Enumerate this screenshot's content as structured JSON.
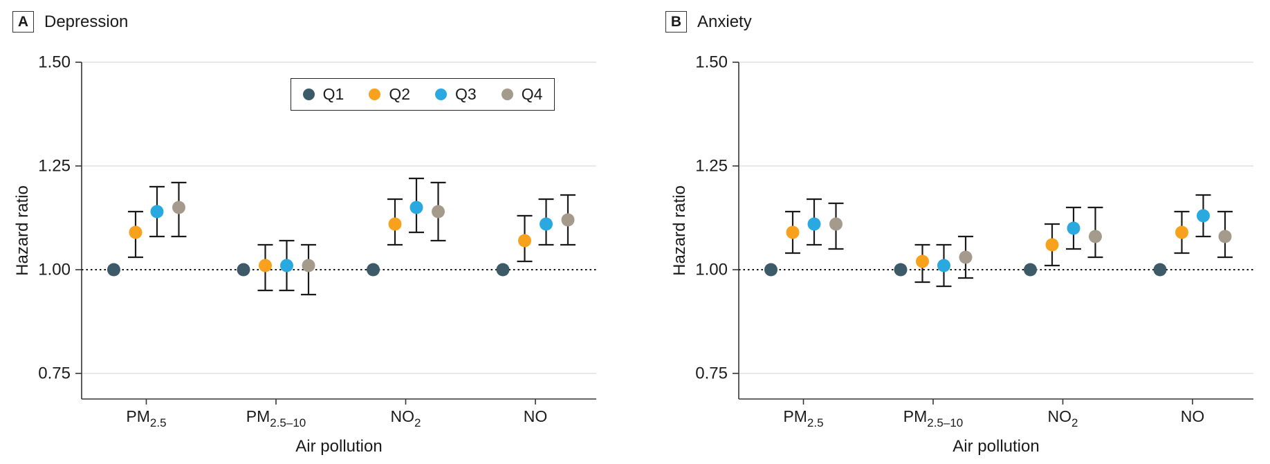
{
  "figure": {
    "panels": [
      {
        "label": "A",
        "title": "Depression"
      },
      {
        "label": "B",
        "title": "Anxiety"
      }
    ]
  },
  "legend": {
    "items": [
      {
        "label": "Q1",
        "color": "#3c5a67"
      },
      {
        "label": "Q2",
        "color": "#f7a11c"
      },
      {
        "label": "Q3",
        "color": "#29a9e0"
      },
      {
        "label": "Q4",
        "color": "#a49b8c"
      }
    ]
  },
  "colors": {
    "grid": "#e8e8e8",
    "axis": "#333333",
    "error_bar": "#1a1a1a",
    "reference_line": "#111111",
    "text": "#1a1a1a"
  },
  "chart_data": [
    {
      "type": "scatter",
      "panel_label": "A",
      "title": "Depression",
      "xlabel": "Air pollution",
      "ylabel": "Hazard ratio",
      "ylim": [
        0.72,
        1.52
      ],
      "y_ticks": [
        1.5,
        1.25,
        1.0,
        0.75
      ],
      "y_tick_labels": [
        "1.50",
        "1.25",
        "1.00",
        "0.75"
      ],
      "reference_line": 1.0,
      "grid": "horizontal",
      "legend_position": "top-center (panel A only)",
      "categories": [
        "PM2.5",
        "PM2.5-10",
        "NO2",
        "NO"
      ],
      "categories_display": [
        {
          "base": "PM",
          "sub": "2.5"
        },
        {
          "base": "PM",
          "sub": "2.5–10"
        },
        {
          "base": "NO",
          "sub": "2"
        },
        {
          "base": "NO",
          "sub": ""
        }
      ],
      "series": [
        {
          "name": "Q1",
          "color": "#3c5a67",
          "values": [
            {
              "hr": 1.0
            },
            {
              "hr": 1.0
            },
            {
              "hr": 1.0
            },
            {
              "hr": 1.0
            }
          ]
        },
        {
          "name": "Q2",
          "color": "#f7a11c",
          "values": [
            {
              "hr": 1.09,
              "lo": 1.03,
              "hi": 1.14
            },
            {
              "hr": 1.01,
              "lo": 0.95,
              "hi": 1.06
            },
            {
              "hr": 1.11,
              "lo": 1.06,
              "hi": 1.17
            },
            {
              "hr": 1.07,
              "lo": 1.02,
              "hi": 1.13
            }
          ]
        },
        {
          "name": "Q3",
          "color": "#29a9e0",
          "values": [
            {
              "hr": 1.14,
              "lo": 1.08,
              "hi": 1.2
            },
            {
              "hr": 1.01,
              "lo": 0.95,
              "hi": 1.07
            },
            {
              "hr": 1.15,
              "lo": 1.09,
              "hi": 1.22
            },
            {
              "hr": 1.11,
              "lo": 1.06,
              "hi": 1.17
            }
          ]
        },
        {
          "name": "Q4",
          "color": "#a49b8c",
          "values": [
            {
              "hr": 1.15,
              "lo": 1.08,
              "hi": 1.21
            },
            {
              "hr": 1.01,
              "lo": 0.94,
              "hi": 1.06
            },
            {
              "hr": 1.14,
              "lo": 1.07,
              "hi": 1.21
            },
            {
              "hr": 1.12,
              "lo": 1.06,
              "hi": 1.18
            }
          ]
        }
      ]
    },
    {
      "type": "scatter",
      "panel_label": "B",
      "title": "Anxiety",
      "xlabel": "Air pollution",
      "ylabel": "Hazard ratio",
      "ylim": [
        0.72,
        1.52
      ],
      "y_ticks": [
        1.5,
        1.25,
        1.0,
        0.75
      ],
      "y_tick_labels": [
        "1.50",
        "1.25",
        "1.00",
        "0.75"
      ],
      "reference_line": 1.0,
      "grid": "horizontal",
      "categories": [
        "PM2.5",
        "PM2.5-10",
        "NO2",
        "NO"
      ],
      "categories_display": [
        {
          "base": "PM",
          "sub": "2.5"
        },
        {
          "base": "PM",
          "sub": "2.5–10"
        },
        {
          "base": "NO",
          "sub": "2"
        },
        {
          "base": "NO",
          "sub": ""
        }
      ],
      "series": [
        {
          "name": "Q1",
          "color": "#3c5a67",
          "values": [
            {
              "hr": 1.0
            },
            {
              "hr": 1.0
            },
            {
              "hr": 1.0
            },
            {
              "hr": 1.0
            }
          ]
        },
        {
          "name": "Q2",
          "color": "#f7a11c",
          "values": [
            {
              "hr": 1.09,
              "lo": 1.04,
              "hi": 1.14
            },
            {
              "hr": 1.02,
              "lo": 0.97,
              "hi": 1.06
            },
            {
              "hr": 1.06,
              "lo": 1.01,
              "hi": 1.11
            },
            {
              "hr": 1.09,
              "lo": 1.04,
              "hi": 1.14
            }
          ]
        },
        {
          "name": "Q3",
          "color": "#29a9e0",
          "values": [
            {
              "hr": 1.11,
              "lo": 1.06,
              "hi": 1.17
            },
            {
              "hr": 1.01,
              "lo": 0.96,
              "hi": 1.06
            },
            {
              "hr": 1.1,
              "lo": 1.05,
              "hi": 1.15
            },
            {
              "hr": 1.13,
              "lo": 1.08,
              "hi": 1.18
            }
          ]
        },
        {
          "name": "Q4",
          "color": "#a49b8c",
          "values": [
            {
              "hr": 1.11,
              "lo": 1.05,
              "hi": 1.16
            },
            {
              "hr": 1.03,
              "lo": 0.98,
              "hi": 1.08
            },
            {
              "hr": 1.08,
              "lo": 1.03,
              "hi": 1.15
            },
            {
              "hr": 1.08,
              "lo": 1.03,
              "hi": 1.14
            }
          ]
        }
      ]
    }
  ]
}
